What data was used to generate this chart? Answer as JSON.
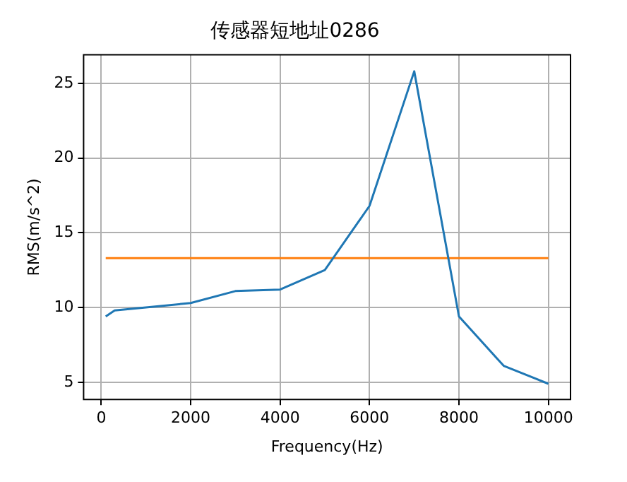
{
  "chart_data": {
    "type": "line",
    "title": "传感器短地址0286",
    "xlabel": "Frequency(Hz)",
    "ylabel": "RMS(m/s^2)",
    "xlim": [
      -395,
      10495
    ],
    "ylim": [
      3.85,
      26.9
    ],
    "xticks": [
      0,
      2000,
      4000,
      6000,
      8000,
      10000
    ],
    "yticks": [
      5,
      10,
      15,
      20,
      25
    ],
    "grid": true,
    "legend": false,
    "series": [
      {
        "color": "#1f77b4",
        "x": [
          100,
          300,
          2000,
          3000,
          4000,
          5000,
          6000,
          7000,
          8000,
          9000,
          10000
        ],
        "values": [
          9.4,
          9.8,
          10.3,
          11.1,
          11.2,
          12.5,
          16.8,
          25.8,
          9.4,
          6.1,
          4.9
        ]
      },
      {
        "color": "#ff7f0e",
        "x": [
          100,
          10000
        ],
        "values": [
          13.3,
          13.3
        ]
      }
    ]
  }
}
